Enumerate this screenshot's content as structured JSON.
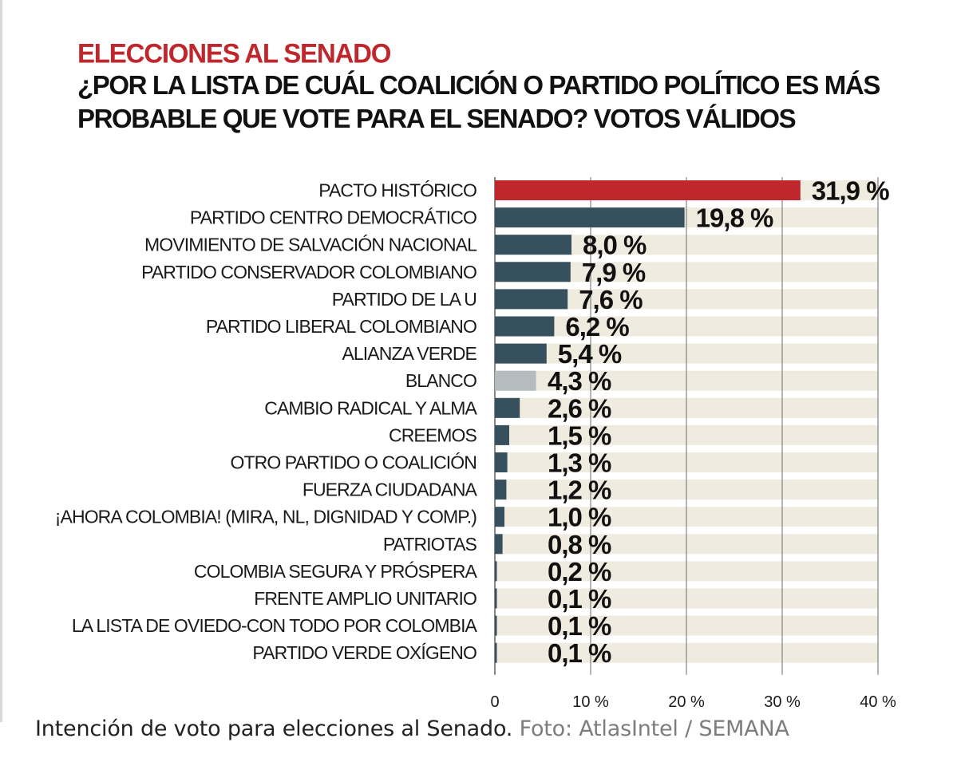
{
  "header": {
    "kicker": "ELECCIONES AL SENADO",
    "question_line1": "¿POR LA LISTA DE CUÁL COALICIÓN O PARTIDO POLÍTICO ES MÁS",
    "question_line2": "PROBABLE QUE VOTE PARA EL SENADO?  VOTOS VÁLIDOS"
  },
  "caption": {
    "text": "Intención de voto para elecciones al Senado.",
    "credit": "Foto: AtlasIntel / SEMANA"
  },
  "colors": {
    "highlight": "#c0272d",
    "bar": "#36505e",
    "blank": "#b4bcbf",
    "track": "#efebdf"
  },
  "chart_data": {
    "type": "bar",
    "orientation": "horizontal",
    "title": "¿POR LA LISTA DE CUÁL COALICIÓN O PARTIDO POLÍTICO ES MÁS PROBABLE QUE VOTE PARA EL SENADO?  VOTOS VÁLIDOS",
    "xlim": [
      0,
      40
    ],
    "ticks": [
      0,
      10,
      20,
      30,
      40
    ],
    "tick_labels": [
      "0",
      "10 %",
      "20 %",
      "30 %",
      "40 %"
    ],
    "categories": [
      "PACTO HISTÓRICO",
      "PARTIDO CENTRO DEMOCRÁTICO",
      "MOVIMIENTO DE SALVACIÓN NACIONAL",
      "PARTIDO CONSERVADOR COLOMBIANO",
      "PARTIDO DE LA U",
      "PARTIDO LIBERAL COLOMBIANO",
      "ALIANZA VERDE",
      "BLANCO",
      "CAMBIO RADICAL Y ALMA",
      "CREEMOS",
      "OTRO PARTIDO O COALICIÓN",
      "FUERZA CIUDADANA",
      "¡AHORA COLOMBIA! (MIRA, NL, DIGNIDAD Y COMP.)",
      "PATRIOTAS",
      "COLOMBIA SEGURA Y PRÓSPERA",
      "FRENTE AMPLIO UNITARIO",
      "LA LISTA DE OVIEDO-CON TODO POR COLOMBIA",
      "PARTIDO VERDE OXÍGENO"
    ],
    "values": [
      31.9,
      19.8,
      8.0,
      7.9,
      7.6,
      6.2,
      5.4,
      4.3,
      2.6,
      1.5,
      1.3,
      1.2,
      1.0,
      0.8,
      0.2,
      0.1,
      0.1,
      0.1
    ],
    "value_labels": [
      "31,9 %",
      "19,8 %",
      "8,0 %",
      "7,9 %",
      "7,6 %",
      "6,2 %",
      "5,4 %",
      "4,3 %",
      "2,6 %",
      "1,5 %",
      "1,3 %",
      "1,2 %",
      "1,0 %",
      "0,8 %",
      "0,2 %",
      "0,1 %",
      "0,1 %",
      "0,1 %"
    ],
    "bar_styles": [
      "highlight",
      "bar",
      "bar",
      "bar",
      "bar",
      "bar",
      "bar",
      "blank",
      "bar",
      "bar",
      "bar",
      "bar",
      "bar",
      "bar",
      "bar",
      "bar",
      "bar",
      "bar"
    ]
  }
}
